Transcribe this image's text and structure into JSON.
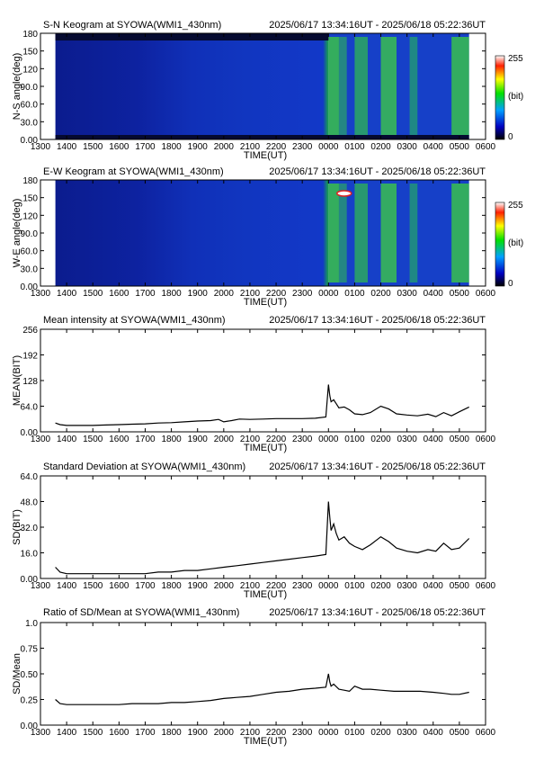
{
  "subtitle_range": "2025/06/17 13:34:16UT - 2025/06/18 05:22:36UT",
  "colors": {
    "line": "#000000",
    "axis": "#000000",
    "keogram_bg": "#0a1a8c"
  },
  "colorbar": {
    "max_label": "255",
    "min_label": "0",
    "unit_label": "(bit)"
  },
  "chart_data": [
    {
      "type": "heatmap",
      "title": "S-N Keogram at SYOWA(WMI1_430nm)",
      "xlabel": "TIME(UT)",
      "ylabel": "N-S angle(deg)",
      "x_ticks": [
        "1300",
        "1400",
        "1500",
        "1600",
        "1700",
        "1800",
        "1900",
        "2000",
        "2100",
        "2200",
        "2300",
        "0000",
        "0100",
        "0200",
        "0300",
        "0400",
        "0500",
        "0600"
      ],
      "y_ticks": [
        "0.00",
        "30.0",
        "60.0",
        "90.0",
        "120",
        "150",
        "180"
      ],
      "ylim": [
        0,
        180
      ],
      "description_regions": [
        {
          "from": "1334",
          "to": "0000",
          "level": "low"
        },
        {
          "from": "0000",
          "to": "0522",
          "level": "high"
        }
      ]
    },
    {
      "type": "heatmap",
      "title": "E-W Keogram at SYOWA(WMI1_430nm)",
      "xlabel": "TIME(UT)",
      "ylabel": "W-E angle(deg)",
      "x_ticks": [
        "1300",
        "1400",
        "1500",
        "1600",
        "1700",
        "1800",
        "1900",
        "2000",
        "2100",
        "2200",
        "2300",
        "0000",
        "0100",
        "0200",
        "0300",
        "0400",
        "0500",
        "0600"
      ],
      "y_ticks": [
        "0.00",
        "30.0",
        "60.0",
        "90.0",
        "120",
        "150",
        "180"
      ],
      "ylim": [
        0,
        180
      ]
    },
    {
      "type": "line",
      "title": "Mean intensity at SYOWA(WMI1_430nm)",
      "xlabel": "TIME(UT)",
      "ylabel": "MEAN(BIT)",
      "x_ticks": [
        "1300",
        "1400",
        "1500",
        "1600",
        "1700",
        "1800",
        "1900",
        "2000",
        "2100",
        "2200",
        "2300",
        "0000",
        "0100",
        "0200",
        "0300",
        "0400",
        "0500",
        "0600"
      ],
      "y_ticks": [
        "0.00",
        "64.0",
        "128",
        "192",
        "256"
      ],
      "ylim": [
        0,
        256
      ],
      "x_hours": [
        13.57,
        13.75,
        14.0,
        14.5,
        15.0,
        15.5,
        16.0,
        16.5,
        17.0,
        17.5,
        18.0,
        18.5,
        19.0,
        19.5,
        19.8,
        20.0,
        20.3,
        20.6,
        21.0,
        21.5,
        22.0,
        22.5,
        23.0,
        23.5,
        23.9,
        24.0,
        24.05,
        24.1,
        24.2,
        24.3,
        24.4,
        24.6,
        24.8,
        25.0,
        25.3,
        25.6,
        26.0,
        26.3,
        26.6,
        27.0,
        27.4,
        27.8,
        28.1,
        28.4,
        28.7,
        29.0,
        29.37
      ],
      "y": [
        22,
        18,
        16,
        16,
        16,
        17,
        18,
        19,
        20,
        22,
        23,
        25,
        27,
        28,
        31,
        25,
        28,
        32,
        31,
        32,
        33,
        33,
        33,
        34,
        37,
        118,
        90,
        75,
        80,
        70,
        60,
        62,
        55,
        45,
        43,
        48,
        64,
        57,
        45,
        42,
        40,
        44,
        38,
        48,
        40,
        50,
        62
      ]
    },
    {
      "type": "line",
      "title": "Standard Deviation at SYOWA(WMI1_430nm)",
      "xlabel": "TIME(UT)",
      "ylabel": "SD(BIT)",
      "x_ticks": [
        "1300",
        "1400",
        "1500",
        "1600",
        "1700",
        "1800",
        "1900",
        "2000",
        "2100",
        "2200",
        "2300",
        "0000",
        "0100",
        "0200",
        "0300",
        "0400",
        "0500",
        "0600"
      ],
      "y_ticks": [
        "0.00",
        "16.0",
        "32.0",
        "48.0",
        "64.0"
      ],
      "ylim": [
        0,
        64
      ],
      "x_hours": [
        13.57,
        13.75,
        14.0,
        14.5,
        15.0,
        15.5,
        16.0,
        16.5,
        17.0,
        17.5,
        18.0,
        18.5,
        19.0,
        19.5,
        20.0,
        20.5,
        21.0,
        21.5,
        22.0,
        22.5,
        23.0,
        23.5,
        23.9,
        24.0,
        24.05,
        24.1,
        24.2,
        24.3,
        24.4,
        24.6,
        24.8,
        25.0,
        25.3,
        25.6,
        26.0,
        26.3,
        26.6,
        27.0,
        27.4,
        27.8,
        28.1,
        28.4,
        28.7,
        29.0,
        29.37
      ],
      "y": [
        7,
        4,
        3,
        3,
        3,
        3,
        3,
        3,
        3,
        4,
        4,
        5,
        5,
        6,
        7,
        8,
        9,
        10,
        11,
        12,
        13,
        14,
        15,
        48,
        38,
        30,
        34,
        28,
        24,
        26,
        22,
        20,
        18,
        21,
        26,
        23,
        19,
        17,
        16,
        18,
        17,
        22,
        18,
        19,
        25
      ]
    },
    {
      "type": "line",
      "title": "Ratio of SD/Mean at SYOWA(WMI1_430nm)",
      "xlabel": "TIME(UT)",
      "ylabel": "SD/Mean",
      "x_ticks": [
        "1300",
        "1400",
        "1500",
        "1600",
        "1700",
        "1800",
        "1900",
        "2000",
        "2100",
        "2200",
        "2300",
        "0000",
        "0100",
        "0200",
        "0300",
        "0400",
        "0500",
        "0600"
      ],
      "y_ticks": [
        "0.00",
        "0.25",
        "0.50",
        "0.75",
        "1.0"
      ],
      "ylim": [
        0,
        1.0
      ],
      "x_hours": [
        13.57,
        13.75,
        14.0,
        14.5,
        15.0,
        15.5,
        16.0,
        16.5,
        17.0,
        17.5,
        18.0,
        18.5,
        19.0,
        19.5,
        20.0,
        20.5,
        21.0,
        21.5,
        22.0,
        22.5,
        23.0,
        23.5,
        23.9,
        24.0,
        24.05,
        24.1,
        24.2,
        24.4,
        24.6,
        24.8,
        25.0,
        25.3,
        25.6,
        26.0,
        26.5,
        27.0,
        27.5,
        28.0,
        28.4,
        28.7,
        29.0,
        29.37
      ],
      "y": [
        0.25,
        0.21,
        0.2,
        0.2,
        0.2,
        0.2,
        0.2,
        0.21,
        0.21,
        0.21,
        0.22,
        0.22,
        0.23,
        0.24,
        0.26,
        0.27,
        0.28,
        0.3,
        0.32,
        0.33,
        0.35,
        0.36,
        0.37,
        0.5,
        0.42,
        0.38,
        0.4,
        0.35,
        0.34,
        0.33,
        0.38,
        0.35,
        0.35,
        0.34,
        0.33,
        0.33,
        0.33,
        0.32,
        0.31,
        0.3,
        0.3,
        0.32
      ]
    }
  ]
}
